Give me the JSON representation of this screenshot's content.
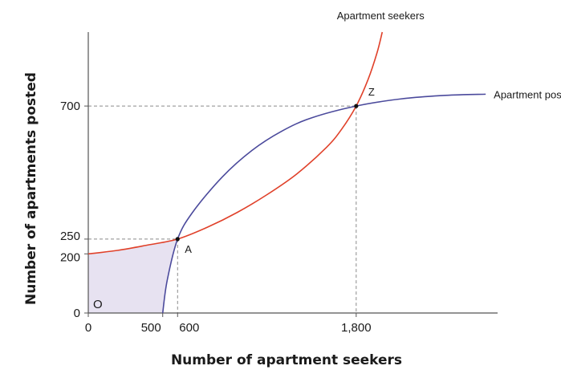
{
  "chart_data": {
    "type": "line",
    "title": "",
    "xlabel": "Number of apartment seekers",
    "ylabel": "Number of apartments posted",
    "xlim": [
      0,
      2750
    ],
    "ylim": [
      0,
      950
    ],
    "grid": false,
    "x_ticks": [
      {
        "value": 0,
        "label": "0"
      },
      {
        "value": 500,
        "label": "500"
      },
      {
        "value": 600,
        "label": "600"
      },
      {
        "value": 1800,
        "label": "1,800"
      }
    ],
    "y_ticks": [
      {
        "value": 0,
        "label": "0"
      },
      {
        "value": 200,
        "label": "200"
      },
      {
        "value": 250,
        "label": "250"
      },
      {
        "value": 700,
        "label": "700"
      }
    ],
    "series": [
      {
        "name": "Apartment seekers",
        "color": "#e0412a",
        "points": [
          {
            "x": 0,
            "y": 200
          },
          {
            "x": 200,
            "y": 212
          },
          {
            "x": 400,
            "y": 230
          },
          {
            "x": 600,
            "y": 250
          },
          {
            "x": 800,
            "y": 290
          },
          {
            "x": 1000,
            "y": 340
          },
          {
            "x": 1200,
            "y": 400
          },
          {
            "x": 1400,
            "y": 470
          },
          {
            "x": 1600,
            "y": 560
          },
          {
            "x": 1700,
            "y": 620
          },
          {
            "x": 1800,
            "y": 700
          },
          {
            "x": 1880,
            "y": 790
          },
          {
            "x": 1940,
            "y": 880
          },
          {
            "x": 1975,
            "y": 950
          }
        ]
      },
      {
        "name": "Apartment posters",
        "color": "#4b4a9c",
        "points": [
          {
            "x": 500,
            "y": 0
          },
          {
            "x": 530,
            "y": 110
          },
          {
            "x": 600,
            "y": 250
          },
          {
            "x": 700,
            "y": 340
          },
          {
            "x": 900,
            "y": 460
          },
          {
            "x": 1100,
            "y": 550
          },
          {
            "x": 1300,
            "y": 615
          },
          {
            "x": 1500,
            "y": 660
          },
          {
            "x": 1800,
            "y": 700
          },
          {
            "x": 2100,
            "y": 724
          },
          {
            "x": 2400,
            "y": 736
          },
          {
            "x": 2670,
            "y": 740
          }
        ]
      }
    ],
    "shaded_region": {
      "label": "O",
      "fill": "#e7e2f1",
      "description_points": [
        {
          "x": 0,
          "y": 0
        },
        {
          "x": 0,
          "y": 200
        },
        {
          "x": 600,
          "y": 250
        },
        {
          "x": 500,
          "y": 0
        }
      ]
    },
    "points": [
      {
        "name": "A",
        "x": 600,
        "y": 250
      },
      {
        "name": "Z",
        "x": 1800,
        "y": 700
      }
    ],
    "annotations": {
      "seekers_label": "Apartment seekers",
      "posters_label": "Apartment posters"
    }
  }
}
